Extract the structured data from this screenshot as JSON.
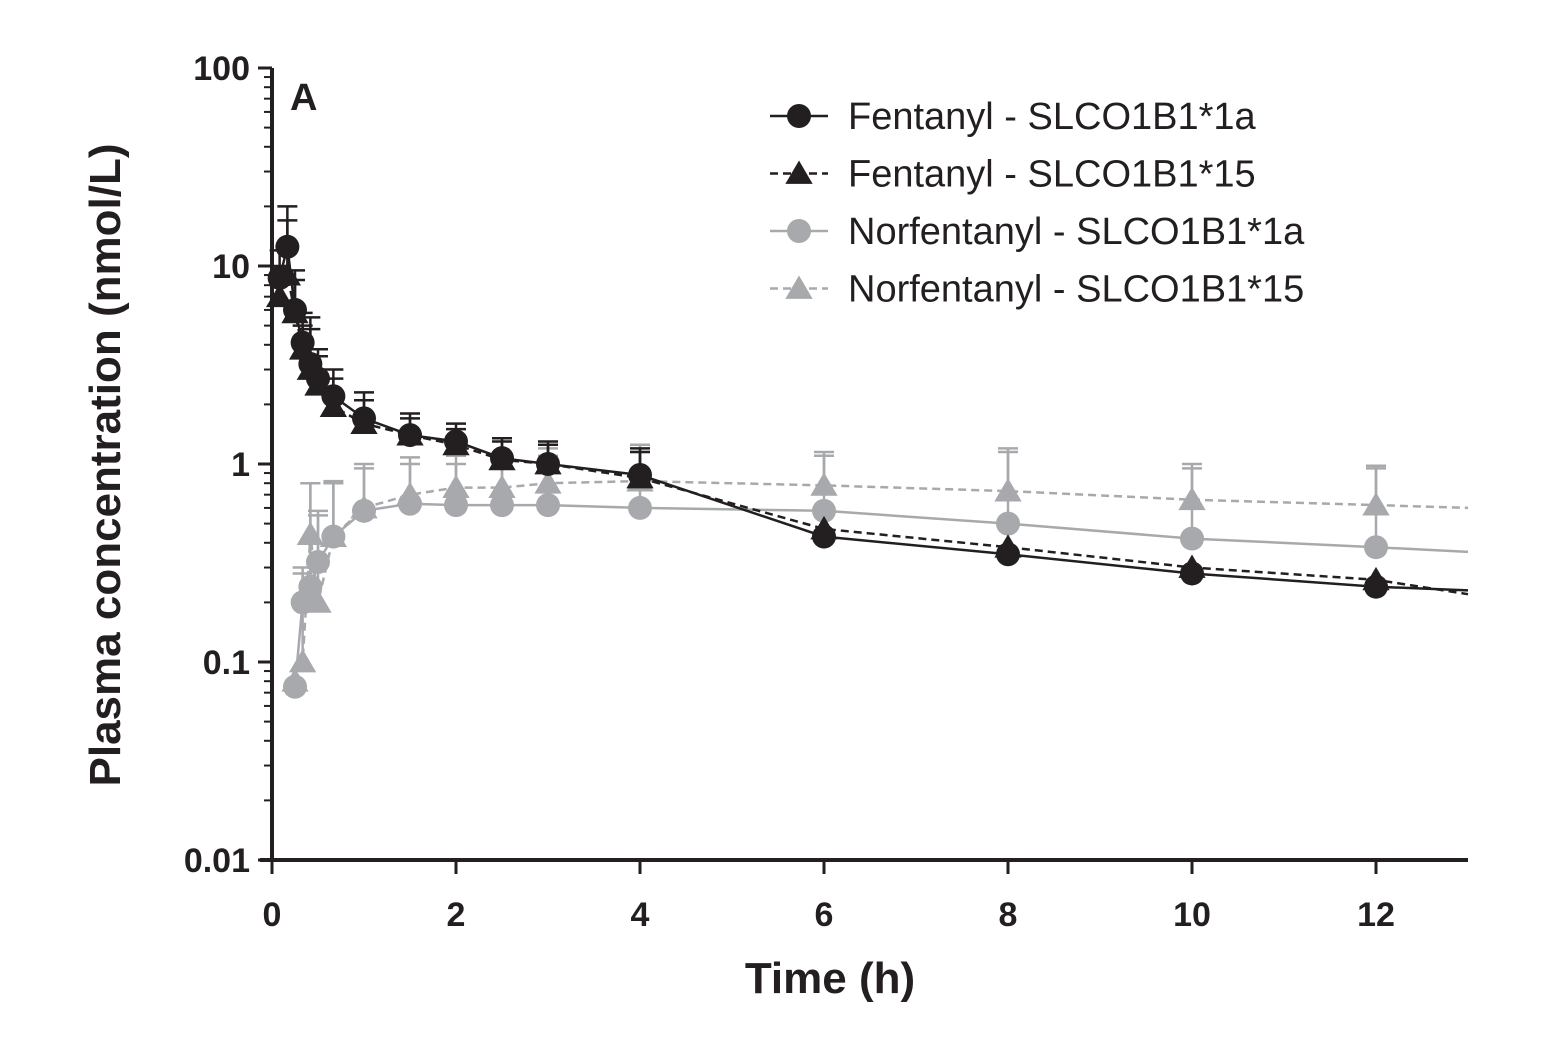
{
  "chart_data": {
    "type": "line",
    "panel_label": "A",
    "xlabel": "Time (h)",
    "ylabel": "Plasma concentration (nmol/L)",
    "xlim": [
      0,
      13
    ],
    "ylim": [
      0.01,
      100
    ],
    "y_scale": "log",
    "x_ticks": [
      0,
      2,
      4,
      6,
      8,
      10,
      12
    ],
    "x_tick_labels": [
      "0",
      "2",
      "4",
      "6",
      "8",
      "10",
      "12"
    ],
    "y_ticks": [
      0.01,
      0.1,
      1,
      10,
      100
    ],
    "y_tick_labels": [
      "0.01",
      "0.1",
      "1",
      "10",
      "100"
    ],
    "legend_position": "top-right",
    "grid": false,
    "series": [
      {
        "name": "Fentanyl - SLCO1B1*1a",
        "color": "#231f20",
        "marker": "circle",
        "line_style": "solid",
        "x": [
          0.083,
          0.167,
          0.25,
          0.333,
          0.417,
          0.5,
          0.667,
          1,
          1.5,
          2,
          2.5,
          3,
          4,
          6,
          8,
          10,
          12,
          13
        ],
        "y": [
          8.7,
          12.5,
          6.0,
          4.1,
          3.2,
          2.7,
          2.2,
          1.7,
          1.4,
          1.3,
          1.07,
          1.0,
          0.88,
          0.43,
          0.35,
          0.28,
          0.24,
          0.23
        ],
        "error_upper": [
          12,
          20,
          9.5,
          5.8,
          5.5,
          3.8,
          3.0,
          2.3,
          1.8,
          1.6,
          1.35,
          1.3,
          1.2,
          null,
          null,
          null,
          null,
          null
        ]
      },
      {
        "name": "Fentanyl - SLCO1B1*15",
        "color": "#231f20",
        "marker": "triangle",
        "line_style": "dashed",
        "x": [
          0.083,
          0.167,
          0.25,
          0.333,
          0.417,
          0.5,
          0.667,
          1,
          1.5,
          2,
          2.5,
          3,
          4,
          6,
          8,
          10,
          12,
          13
        ],
        "y": [
          7.0,
          9.0,
          5.8,
          3.8,
          3.0,
          2.5,
          1.95,
          1.6,
          1.4,
          1.25,
          1.05,
          1.0,
          0.85,
          0.47,
          0.38,
          0.3,
          0.26,
          0.22
        ],
        "error_upper": [
          10,
          17,
          8.5,
          5.0,
          4.8,
          3.5,
          2.7,
          2.1,
          1.7,
          1.5,
          1.3,
          1.25,
          1.15,
          null,
          null,
          null,
          null,
          null
        ]
      },
      {
        "name": "Norfentanyl - SLCO1B1*1a",
        "color": "#a7a9ac",
        "marker": "circle",
        "line_style": "solid",
        "x": [
          0.25,
          0.333,
          0.417,
          0.5,
          0.667,
          1,
          1.5,
          2,
          2.5,
          3,
          4,
          6,
          8,
          10,
          12,
          13
        ],
        "y": [
          0.075,
          0.2,
          0.24,
          0.32,
          0.43,
          0.58,
          0.63,
          0.62,
          0.62,
          0.62,
          0.6,
          0.58,
          0.5,
          0.42,
          0.38,
          0.36
        ],
        "error_upper": [
          null,
          0.3,
          0.8,
          0.55,
          0.8,
          0.95,
          1.0,
          1.0,
          1.05,
          1.1,
          1.15,
          1.1,
          1.15,
          0.95,
          0.95,
          null
        ]
      },
      {
        "name": "Norfentanyl - SLCO1B1*15",
        "color": "#a7a9ac",
        "marker": "triangle",
        "line_style": "dashed",
        "x": [
          0.25,
          0.333,
          0.417,
          0.5,
          0.667,
          1,
          1.5,
          2,
          2.5,
          3,
          4,
          6,
          8,
          10,
          12,
          13
        ],
        "y": [
          0.08,
          0.1,
          0.44,
          0.2,
          0.43,
          0.6,
          0.7,
          0.76,
          0.76,
          0.8,
          0.82,
          0.78,
          0.73,
          0.66,
          0.62,
          0.6
        ],
        "error_upper": [
          null,
          0.28,
          0.8,
          0.58,
          0.82,
          1.0,
          1.08,
          1.1,
          1.1,
          1.2,
          1.25,
          1.15,
          1.2,
          1.0,
          0.98,
          null
        ]
      }
    ]
  }
}
